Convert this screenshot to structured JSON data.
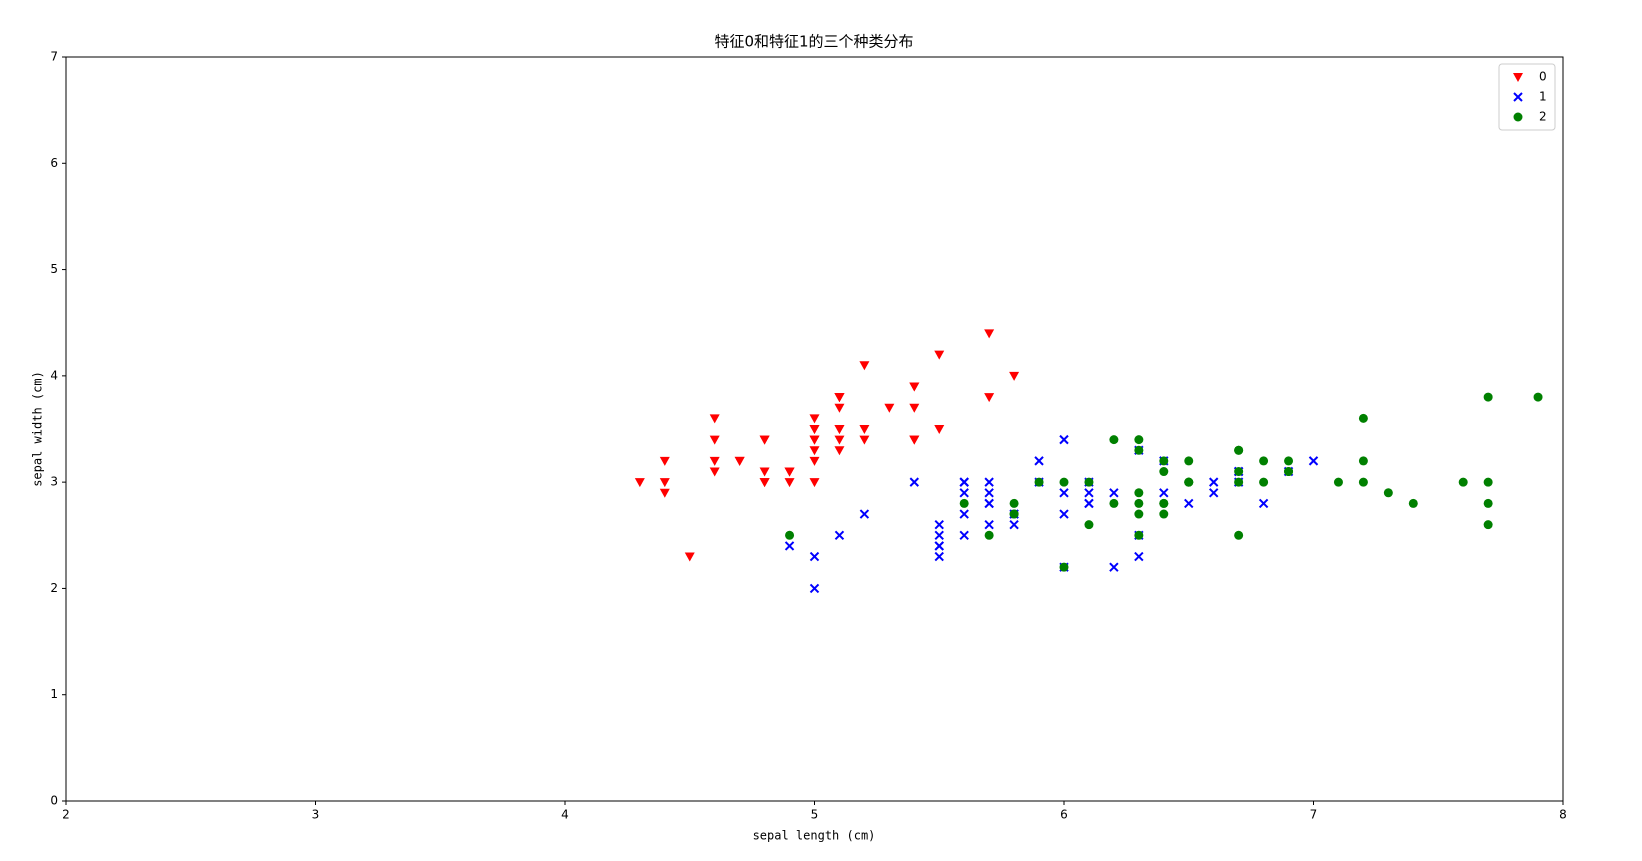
{
  "chart_data": {
    "type": "scatter",
    "title": "特征0和特征1的三个种类分布",
    "x_label": "sepal length (cm)",
    "y_label": "sepal width (cm)",
    "xlim": [
      2,
      8
    ],
    "ylim": [
      0,
      7
    ],
    "xticks": [
      2,
      3,
      4,
      5,
      6,
      7,
      8
    ],
    "yticks": [
      0,
      1,
      2,
      3,
      4,
      5,
      6,
      7
    ],
    "legend": "upper right",
    "series": [
      {
        "name": "0",
        "color": "#ff0000",
        "marker": "v",
        "x": [
          5.1,
          4.9,
          4.7,
          4.6,
          5.0,
          5.4,
          4.6,
          5.0,
          4.4,
          4.9,
          5.4,
          4.8,
          4.8,
          4.3,
          5.8,
          5.7,
          5.4,
          5.1,
          5.7,
          5.1,
          5.4,
          5.1,
          4.6,
          5.1,
          4.8,
          5.0,
          5.0,
          5.2,
          5.2,
          4.7,
          4.8,
          5.4,
          5.2,
          5.5,
          4.9,
          5.0,
          5.5,
          4.9,
          4.4,
          5.1,
          5.0,
          4.5,
          4.4,
          5.0,
          5.1,
          4.8,
          5.1,
          4.6,
          5.3,
          5.0
        ],
        "values": [
          3.5,
          3.0,
          3.2,
          3.1,
          3.6,
          3.9,
          3.4,
          3.4,
          2.9,
          3.1,
          3.7,
          3.4,
          3.0,
          3.0,
          4.0,
          4.4,
          3.9,
          3.5,
          3.8,
          3.8,
          3.4,
          3.7,
          3.6,
          3.3,
          3.4,
          3.0,
          3.4,
          3.5,
          3.4,
          3.2,
          3.1,
          3.4,
          4.1,
          4.2,
          3.1,
          3.2,
          3.5,
          3.1,
          3.0,
          3.4,
          3.5,
          2.3,
          3.2,
          3.5,
          3.8,
          3.0,
          3.8,
          3.2,
          3.7,
          3.3
        ]
      },
      {
        "name": "1",
        "color": "#0000ff",
        "marker": "x",
        "x": [
          7.0,
          6.4,
          6.9,
          5.5,
          6.5,
          5.7,
          6.3,
          4.9,
          6.6,
          5.2,
          5.0,
          5.9,
          6.0,
          6.1,
          5.6,
          6.7,
          5.6,
          5.8,
          6.2,
          5.6,
          5.9,
          6.1,
          6.3,
          6.1,
          6.4,
          6.6,
          6.8,
          6.7,
          6.0,
          5.7,
          5.5,
          5.5,
          5.8,
          6.0,
          5.4,
          6.0,
          6.7,
          6.3,
          5.6,
          5.5,
          5.5,
          6.1,
          5.8,
          5.0,
          5.6,
          5.7,
          5.7,
          6.2,
          5.1,
          5.7
        ],
        "values": [
          3.2,
          3.2,
          3.1,
          2.3,
          2.8,
          2.8,
          3.3,
          2.4,
          2.9,
          2.7,
          2.0,
          3.0,
          2.2,
          2.9,
          2.9,
          3.1,
          3.0,
          2.7,
          2.2,
          2.5,
          3.2,
          2.8,
          2.5,
          2.8,
          2.9,
          3.0,
          2.8,
          3.0,
          2.9,
          2.6,
          2.4,
          2.4,
          2.7,
          2.7,
          3.0,
          3.4,
          3.1,
          2.3,
          3.0,
          2.5,
          2.6,
          3.0,
          2.6,
          2.3,
          2.7,
          3.0,
          2.9,
          2.9,
          2.5,
          2.8
        ]
      },
      {
        "name": "2",
        "color": "#008000",
        "marker": "o",
        "x": [
          6.3,
          5.8,
          7.1,
          6.3,
          6.5,
          7.6,
          4.9,
          7.3,
          6.7,
          7.2,
          6.5,
          6.4,
          6.8,
          5.7,
          5.8,
          6.4,
          6.5,
          7.7,
          7.7,
          6.0,
          6.9,
          5.6,
          7.7,
          6.3,
          6.7,
          7.2,
          6.2,
          6.1,
          6.4,
          7.2,
          7.4,
          7.9,
          6.4,
          6.3,
          6.1,
          7.7,
          6.3,
          6.4,
          6.0,
          6.9,
          6.7,
          6.9,
          5.8,
          6.8,
          6.7,
          6.7,
          6.3,
          6.5,
          6.2,
          5.9
        ],
        "values": [
          3.3,
          2.7,
          3.0,
          2.9,
          3.0,
          3.0,
          2.5,
          2.9,
          2.5,
          3.6,
          3.2,
          2.7,
          3.0,
          2.5,
          2.8,
          3.2,
          3.0,
          3.8,
          2.6,
          2.2,
          3.2,
          2.8,
          2.8,
          2.7,
          3.3,
          3.2,
          2.8,
          3.0,
          2.8,
          3.0,
          2.8,
          3.8,
          2.8,
          2.8,
          2.6,
          3.0,
          3.4,
          3.1,
          3.0,
          3.1,
          3.1,
          3.1,
          2.7,
          3.2,
          3.3,
          3.0,
          2.5,
          3.0,
          3.4,
          3.0
        ]
      }
    ]
  }
}
